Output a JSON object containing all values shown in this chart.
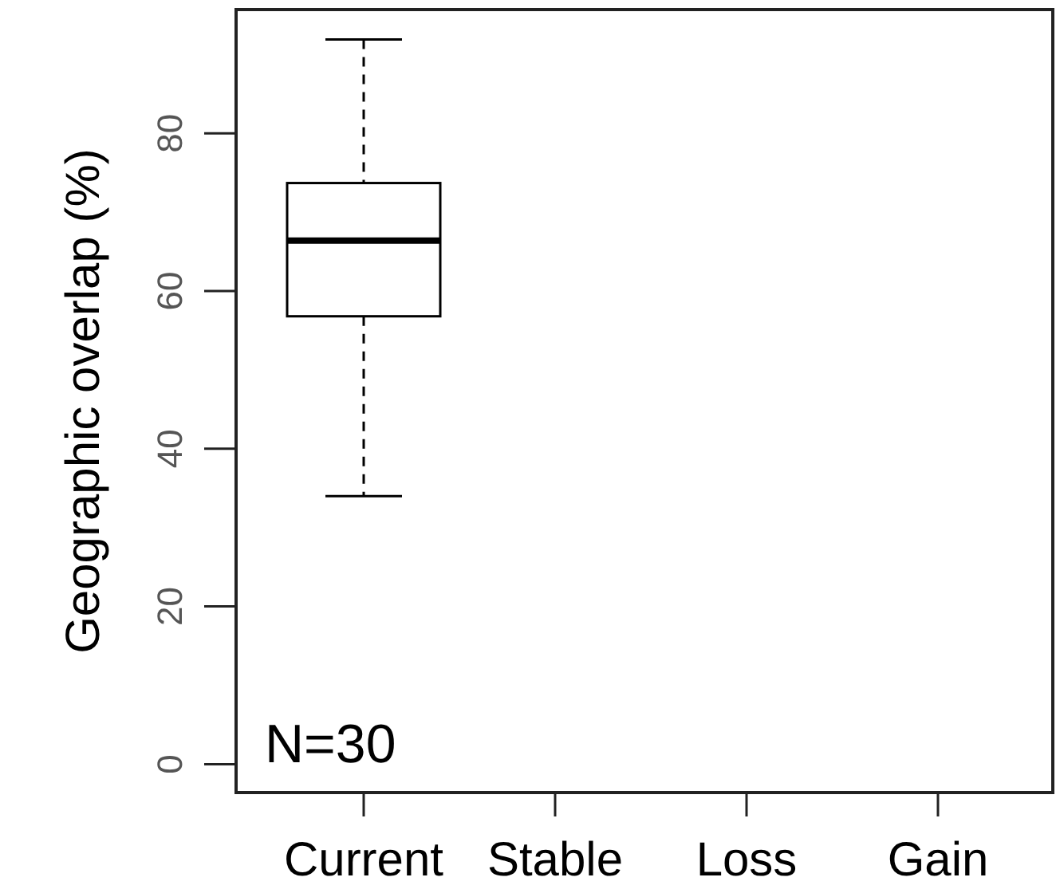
{
  "chart_data": {
    "type": "box",
    "ylabel": "Geographic overlap (%)",
    "categories": [
      "Current",
      "Stable",
      "Loss",
      "Gain"
    ],
    "boxes": [
      {
        "low": 34,
        "q1": 56.8,
        "median": 66.4,
        "q3": 73.7,
        "high": 91.9
      },
      null,
      null,
      null
    ],
    "ylim": [
      -3.6,
      95.7
    ],
    "yticks": [
      0,
      20,
      40,
      60,
      80
    ],
    "annotations": [
      "N=30"
    ]
  }
}
